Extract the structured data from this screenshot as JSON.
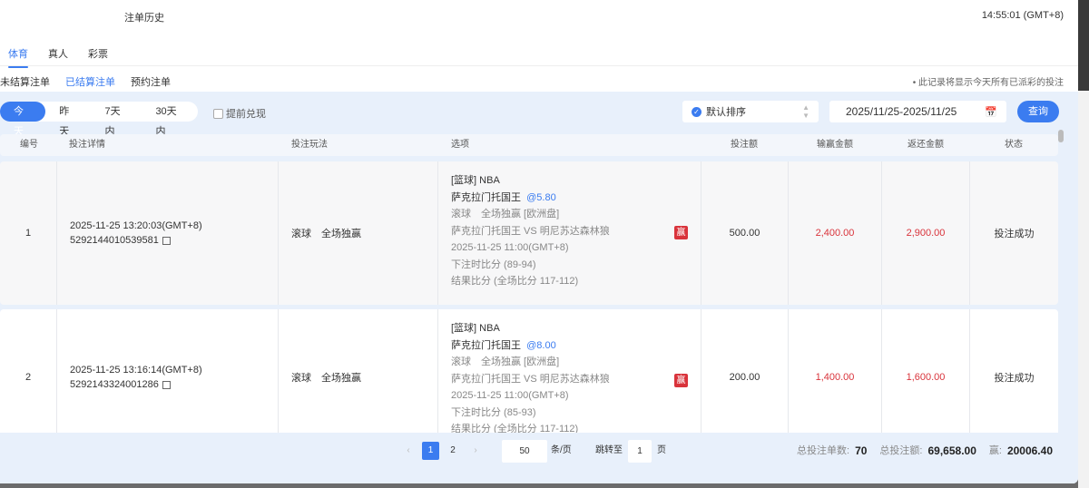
{
  "header": {
    "title": "注单历史",
    "clock": "14:55:01 (GMT+8)"
  },
  "tabs": [
    "体育",
    "真人",
    "彩票"
  ],
  "subtabs": [
    "未结算注单",
    "已结算注单",
    "预约注单"
  ],
  "note": "• 此记录将显示今天所有已派彩的投注",
  "filters": {
    "ranges": [
      "今天",
      "昨天",
      "7天内",
      "30天内"
    ],
    "early_cashout": "提前兑现",
    "sort": "默认排序",
    "date_range": "2025/11/25-2025/11/25",
    "query": "查询"
  },
  "columns": [
    "编号",
    "投注详情",
    "投注玩法",
    "选项",
    "投注额",
    "输赢金额",
    "返还金额",
    "状态"
  ],
  "rows": [
    {
      "no": "1",
      "time": "2025-11-25 13:20:03(GMT+8)",
      "id": "5292144010539581",
      "play": "滚球　全场独赢",
      "league": "[篮球] NBA",
      "pick": "萨克拉门托国王",
      "odds": "@5.80",
      "market": "滚球　全场独赢 [欧洲盘]",
      "match": "萨克拉门托国王 VS 明尼苏达森林狼",
      "match_time": "2025-11-25 11:00(GMT+8)",
      "bet_score": "下注时比分 (89-94)",
      "result": "结果比分 (全场比分 117-112)",
      "win_badge": "赢",
      "stake": "500.00",
      "winloss": "2,400.00",
      "return": "2,900.00",
      "status": "投注成功"
    },
    {
      "no": "2",
      "time": "2025-11-25 13:16:14(GMT+8)",
      "id": "5292143324001286",
      "play": "滚球　全场独赢",
      "league": "[篮球] NBA",
      "pick": "萨克拉门托国王",
      "odds": "@8.00",
      "market": "滚球　全场独赢 [欧洲盘]",
      "match": "萨克拉门托国王 VS 明尼苏达森林狼",
      "match_time": "2025-11-25 11:00(GMT+8)",
      "bet_score": "下注时比分 (85-93)",
      "result": "结果比分 (全场比分 117-112)",
      "win_badge": "赢",
      "stake": "200.00",
      "winloss": "1,400.00",
      "return": "1,600.00",
      "status": "投注成功"
    }
  ],
  "pagination": {
    "prev": "‹",
    "pages": [
      "1",
      "2"
    ],
    "next": "›",
    "page_size": "50",
    "per_page_label": "条/页",
    "jump_label": "跳转至",
    "jump_value": "1",
    "page_label": "页"
  },
  "totals": {
    "count_label": "总投注单数:",
    "count": "70",
    "amount_label": "总投注额:",
    "amount": "69,658.00",
    "win_label": "赢:",
    "win": "20006.40"
  },
  "colors": {
    "accent": "#3b7cf0",
    "win": "#d9333b"
  }
}
